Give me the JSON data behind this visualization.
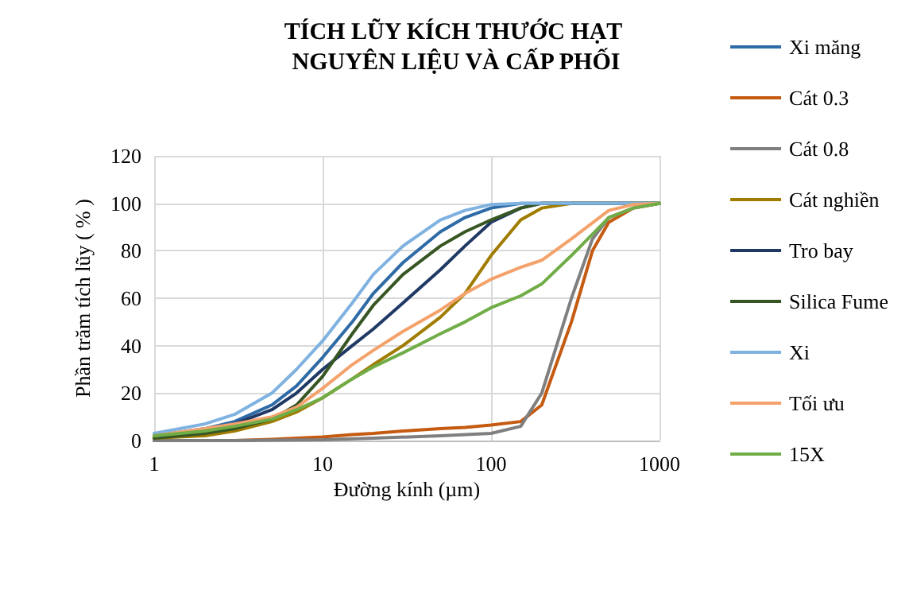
{
  "chart_data": {
    "type": "line",
    "title": "TÍCH LŨY KÍCH THƯỚC HẠT NGUYÊN LIỆU VÀ CẤP PHỐI",
    "xlabel": "Đường kính (µm)",
    "ylabel": "Phần trăm tích lũy ( % )",
    "log": "x",
    "xlim": [
      1,
      1000
    ],
    "xticks": [
      1,
      10,
      100,
      1000
    ],
    "ylim": [
      0,
      120
    ],
    "yticks": [
      0,
      20,
      40,
      60,
      80,
      100,
      120
    ],
    "grid": true,
    "legend": "right",
    "marker": "none",
    "line_style": "solid",
    "series": [
      {
        "name": "Xi măng",
        "color": "#2e6aa6",
        "x": [
          1,
          2,
          3,
          5,
          7,
          10,
          15,
          20,
          30,
          50,
          70,
          100,
          150,
          1000
        ],
        "values": [
          2,
          5,
          8,
          15,
          23,
          35,
          50,
          62,
          75,
          88,
          94,
          98,
          100,
          100
        ]
      },
      {
        "name": "Cát 0.3",
        "color": "#c55a11",
        "x": [
          1,
          3,
          5,
          7,
          10,
          15,
          20,
          30,
          50,
          70,
          100,
          150,
          200,
          300,
          400,
          500,
          700,
          1000
        ],
        "values": [
          0,
          0,
          0.5,
          1,
          1.5,
          2.5,
          3,
          4,
          5,
          5.5,
          6.5,
          8,
          15,
          50,
          80,
          92,
          98,
          100
        ]
      },
      {
        "name": "Cát 0.8",
        "color": "#7f7f7f",
        "x": [
          1,
          3,
          10,
          20,
          50,
          100,
          150,
          200,
          300,
          400,
          500,
          700,
          1000
        ],
        "values": [
          0,
          0,
          0.3,
          1,
          2,
          3,
          6,
          20,
          60,
          85,
          94,
          98,
          100
        ]
      },
      {
        "name": "Cát nghiền",
        "color": "#a07c00",
        "x": [
          1,
          2,
          3,
          5,
          7,
          10,
          15,
          20,
          30,
          50,
          70,
          100,
          150,
          200,
          300,
          1000
        ],
        "values": [
          1,
          2,
          4,
          8,
          12,
          18,
          26,
          32,
          40,
          52,
          62,
          78,
          93,
          98,
          100,
          100
        ]
      },
      {
        "name": "Tro bay",
        "color": "#1f3864",
        "x": [
          1,
          2,
          3,
          5,
          7,
          10,
          15,
          20,
          30,
          50,
          70,
          100,
          150,
          200,
          1000
        ],
        "values": [
          2,
          4,
          7,
          13,
          20,
          30,
          40,
          47,
          58,
          72,
          82,
          92,
          98,
          100,
          100
        ]
      },
      {
        "name": "Silica Fume",
        "color": "#375623",
        "x": [
          1,
          2,
          3,
          5,
          7,
          10,
          15,
          20,
          30,
          50,
          70,
          100,
          150,
          200,
          1000
        ],
        "values": [
          1,
          3,
          5,
          9,
          15,
          27,
          45,
          57,
          70,
          82,
          88,
          93,
          98,
          100,
          100
        ]
      },
      {
        "name": "Xi",
        "color": "#7fb2e0",
        "x": [
          1,
          2,
          3,
          5,
          7,
          10,
          15,
          20,
          30,
          50,
          70,
          100,
          150,
          1000
        ],
        "values": [
          3,
          7,
          11,
          20,
          30,
          42,
          58,
          70,
          82,
          93,
          97,
          99.5,
          100,
          100
        ]
      },
      {
        "name": "Tối ưu",
        "color": "#f4a26b",
        "x": [
          1,
          2,
          3,
          5,
          7,
          10,
          15,
          20,
          30,
          50,
          70,
          100,
          150,
          200,
          300,
          500,
          700,
          1000
        ],
        "values": [
          2,
          5,
          7,
          10,
          14,
          22,
          32,
          38,
          46,
          55,
          62,
          68,
          73,
          76,
          85,
          97,
          99.5,
          100
        ]
      },
      {
        "name": "15X",
        "color": "#70ad47",
        "x": [
          1,
          2,
          3,
          5,
          7,
          10,
          15,
          20,
          30,
          50,
          70,
          100,
          150,
          200,
          300,
          500,
          700,
          1000
        ],
        "values": [
          2,
          4,
          6,
          9,
          13,
          18,
          26,
          31,
          37,
          45,
          50,
          56,
          61,
          66,
          78,
          94,
          98,
          100
        ]
      }
    ]
  }
}
